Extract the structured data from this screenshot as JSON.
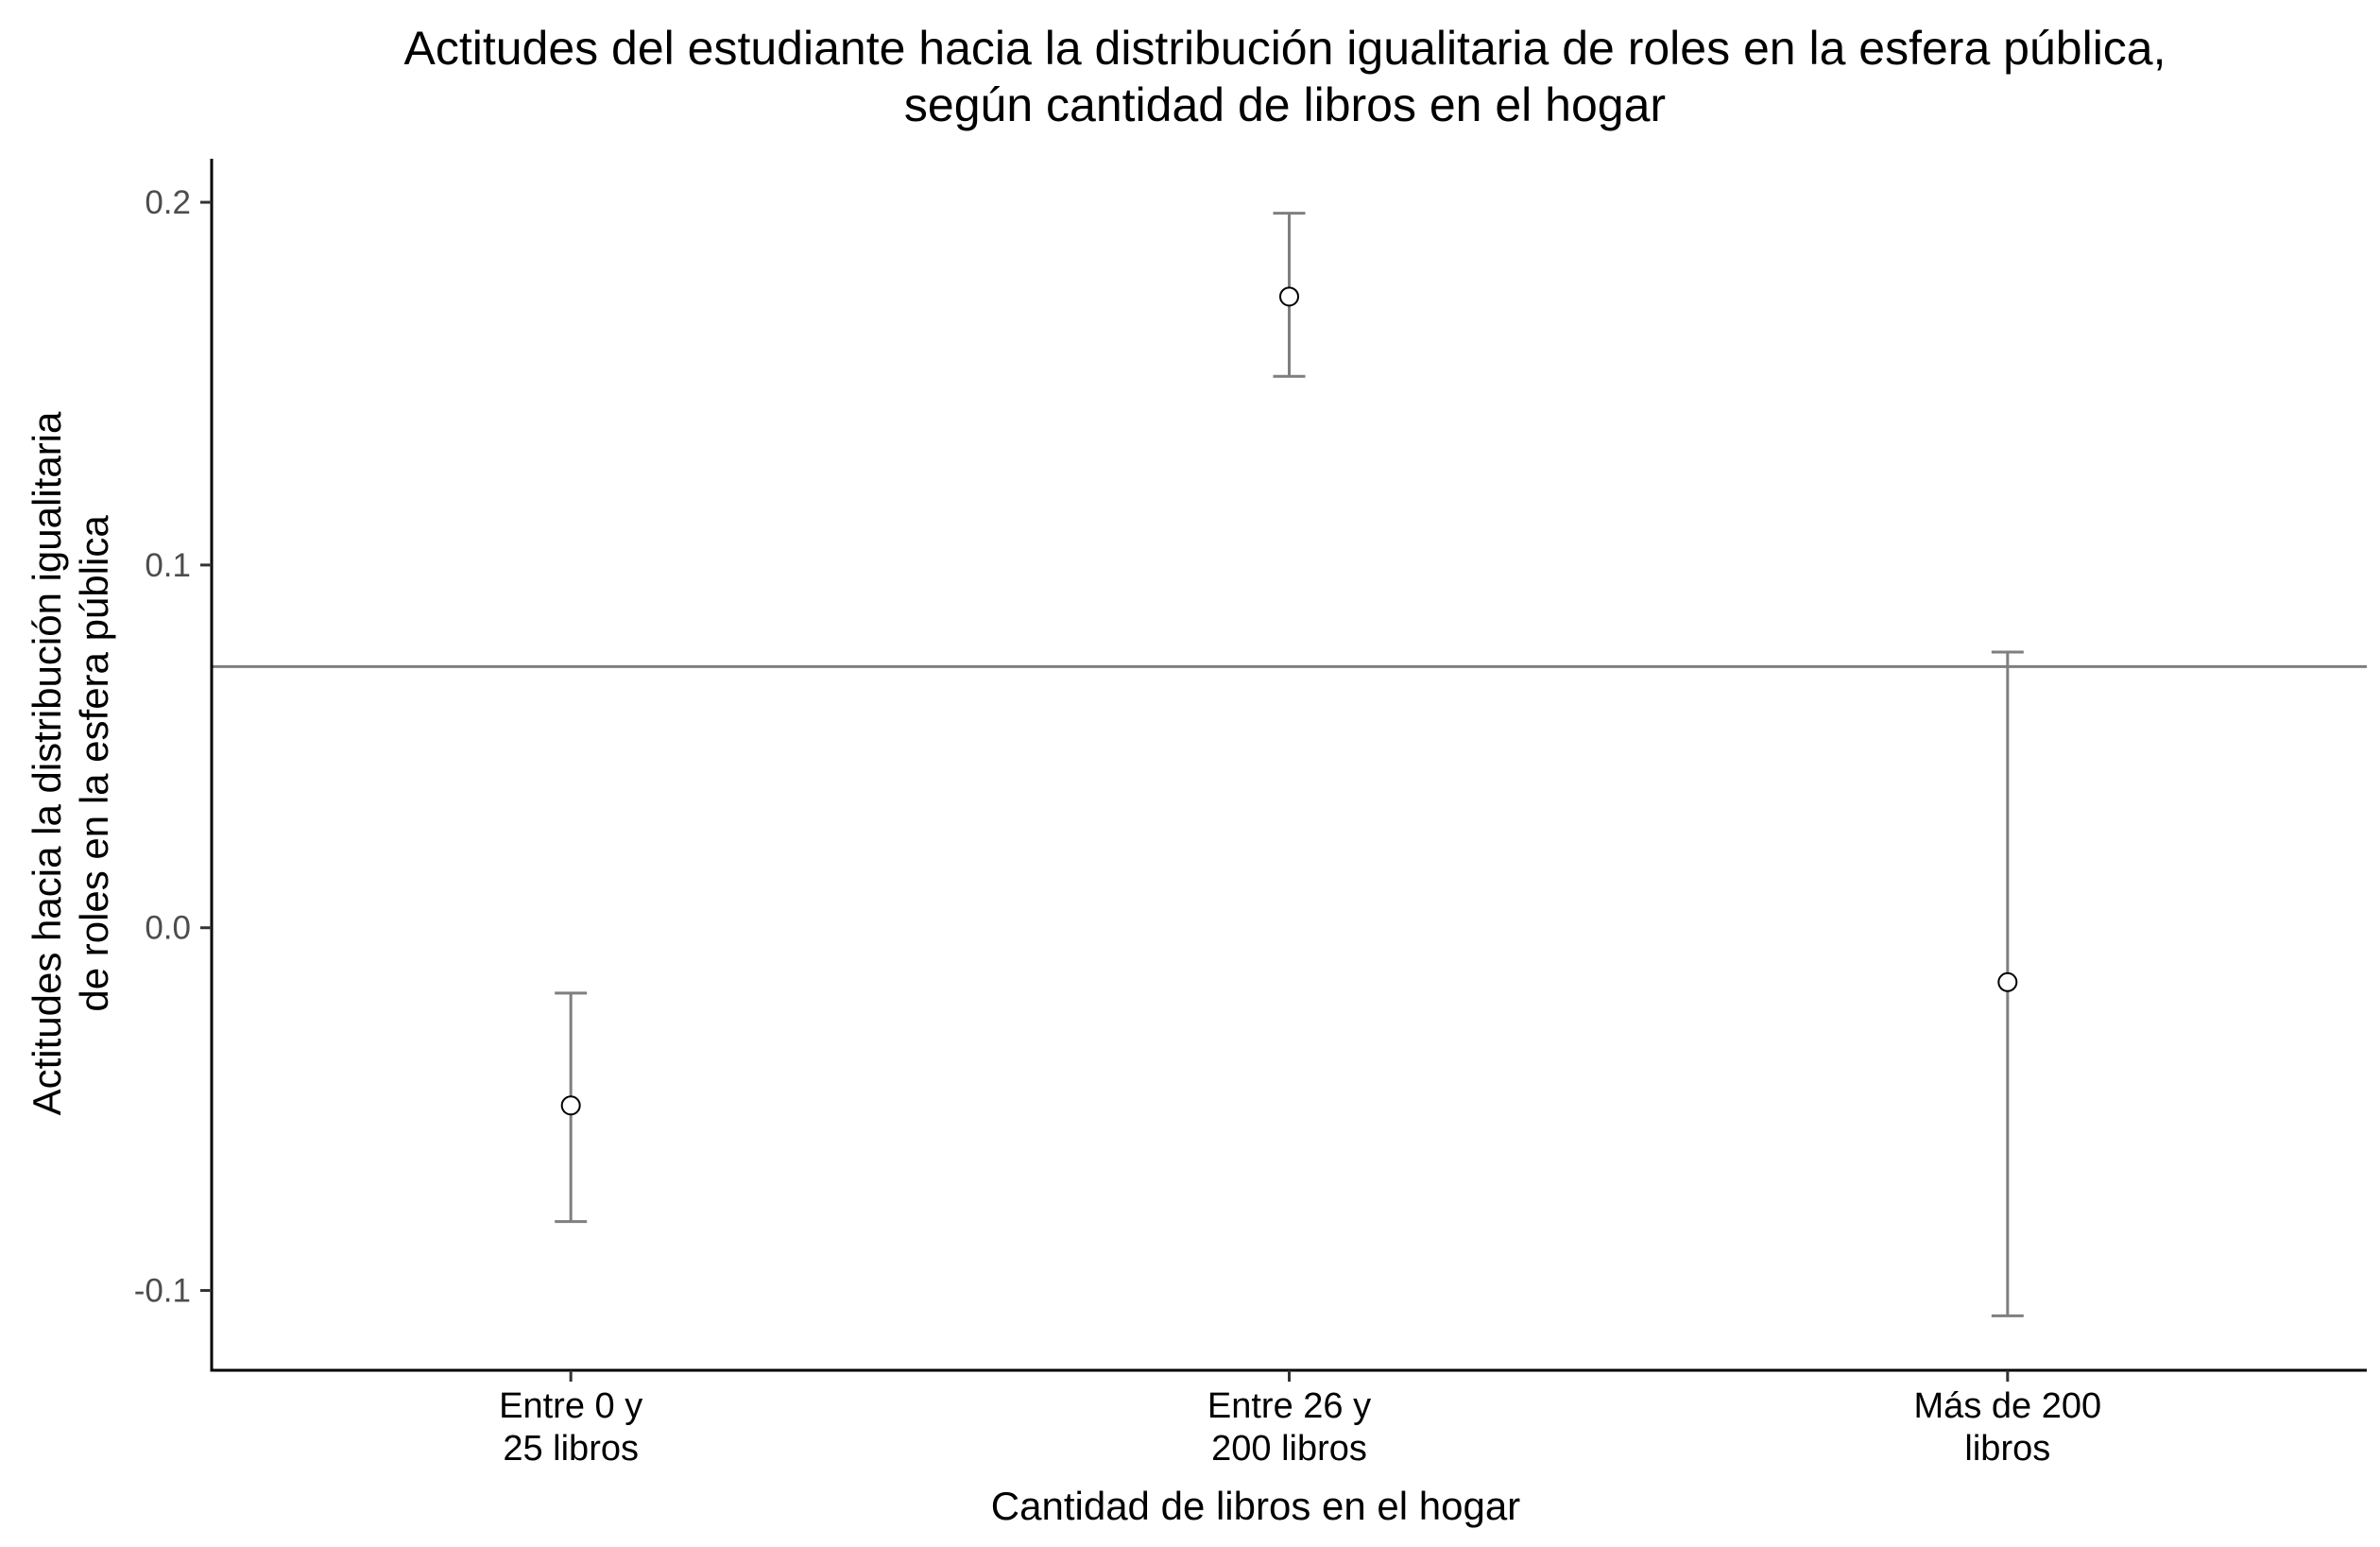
{
  "chart_data": {
    "type": "scatter",
    "title_lines": [
      "Actitudes del estudiante hacia la distribución igualitaria de roles en la esfera pública,",
      "según cantidad de libros en el hogar"
    ],
    "xlabel": "Cantidad de libros en el hogar",
    "ylabel_lines": [
      "Actitudes hacia la distribución igualitaria",
      "de roles en la esfera pública"
    ],
    "categories": [
      [
        "Entre 0 y",
        "25 libros"
      ],
      [
        "Entre 26 y",
        "200 libros"
      ],
      [
        "Más de 200",
        "libros"
      ]
    ],
    "points": [
      {
        "estimate": -0.049,
        "lower": -0.081,
        "upper": -0.018
      },
      {
        "estimate": 0.174,
        "lower": 0.152,
        "upper": 0.197
      },
      {
        "estimate": -0.015,
        "lower": -0.107,
        "upper": 0.076
      }
    ],
    "reference_line": 0.072,
    "yticks": [
      -0.1,
      0.0,
      0.1,
      0.2
    ],
    "ytick_labels": [
      "-0.1",
      "0.0",
      "0.1",
      "0.2"
    ],
    "ylim": [
      -0.122,
      0.212
    ],
    "grid": false,
    "colors": {
      "series": "#7f7f7f",
      "reference_line": "#7f7f7f",
      "axis": "#000000",
      "point_fill": "#ffffff"
    }
  }
}
